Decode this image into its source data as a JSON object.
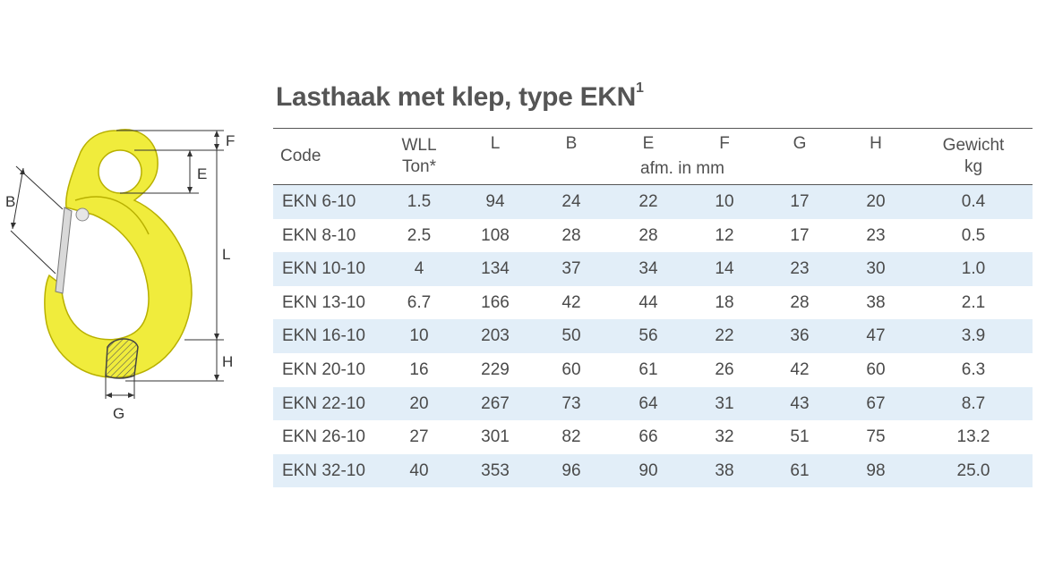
{
  "title": "Lasthaak met klep, type EKN",
  "title_sup": "1",
  "figure": {
    "labels": {
      "F": "F",
      "E": "E",
      "B": "B",
      "L": "L",
      "H": "H",
      "G": "G"
    },
    "hook_color": "#f0ec3c"
  },
  "table": {
    "headers": {
      "code": "Code",
      "wll_1": "WLL",
      "wll_2": "Ton*",
      "l": "L",
      "b": "B",
      "e": "E",
      "f": "F",
      "g": "G",
      "h": "H",
      "weight_1": "Gewicht",
      "weight_2": "kg",
      "unit_note": "afm. in mm"
    },
    "rows": [
      {
        "code": "EKN 6-10",
        "wll": "1.5",
        "l": "94",
        "b": "24",
        "e": "22",
        "f": "10",
        "g": "17",
        "h": "20",
        "weight": "0.4"
      },
      {
        "code": "EKN 8-10",
        "wll": "2.5",
        "l": "108",
        "b": "28",
        "e": "28",
        "f": "12",
        "g": "17",
        "h": "23",
        "weight": "0.5"
      },
      {
        "code": "EKN 10-10",
        "wll": "4",
        "l": "134",
        "b": "37",
        "e": "34",
        "f": "14",
        "g": "23",
        "h": "30",
        "weight": "1.0"
      },
      {
        "code": "EKN 13-10",
        "wll": "6.7",
        "l": "166",
        "b": "42",
        "e": "44",
        "f": "18",
        "g": "28",
        "h": "38",
        "weight": "2.1"
      },
      {
        "code": "EKN 16-10",
        "wll": "10",
        "l": "203",
        "b": "50",
        "e": "56",
        "f": "22",
        "g": "36",
        "h": "47",
        "weight": "3.9"
      },
      {
        "code": "EKN 20-10",
        "wll": "16",
        "l": "229",
        "b": "60",
        "e": "61",
        "f": "26",
        "g": "42",
        "h": "60",
        "weight": "6.3"
      },
      {
        "code": "EKN 22-10",
        "wll": "20",
        "l": "267",
        "b": "73",
        "e": "64",
        "f": "31",
        "g": "43",
        "h": "67",
        "weight": "8.7"
      },
      {
        "code": "EKN 26-10",
        "wll": "27",
        "l": "301",
        "b": "82",
        "e": "66",
        "f": "32",
        "g": "51",
        "h": "75",
        "weight": "13.2"
      },
      {
        "code": "EKN 32-10",
        "wll": "40",
        "l": "353",
        "b": "96",
        "e": "90",
        "f": "38",
        "g": "61",
        "h": "98",
        "weight": "25.0"
      }
    ],
    "shade_color": "#e2eef8"
  }
}
